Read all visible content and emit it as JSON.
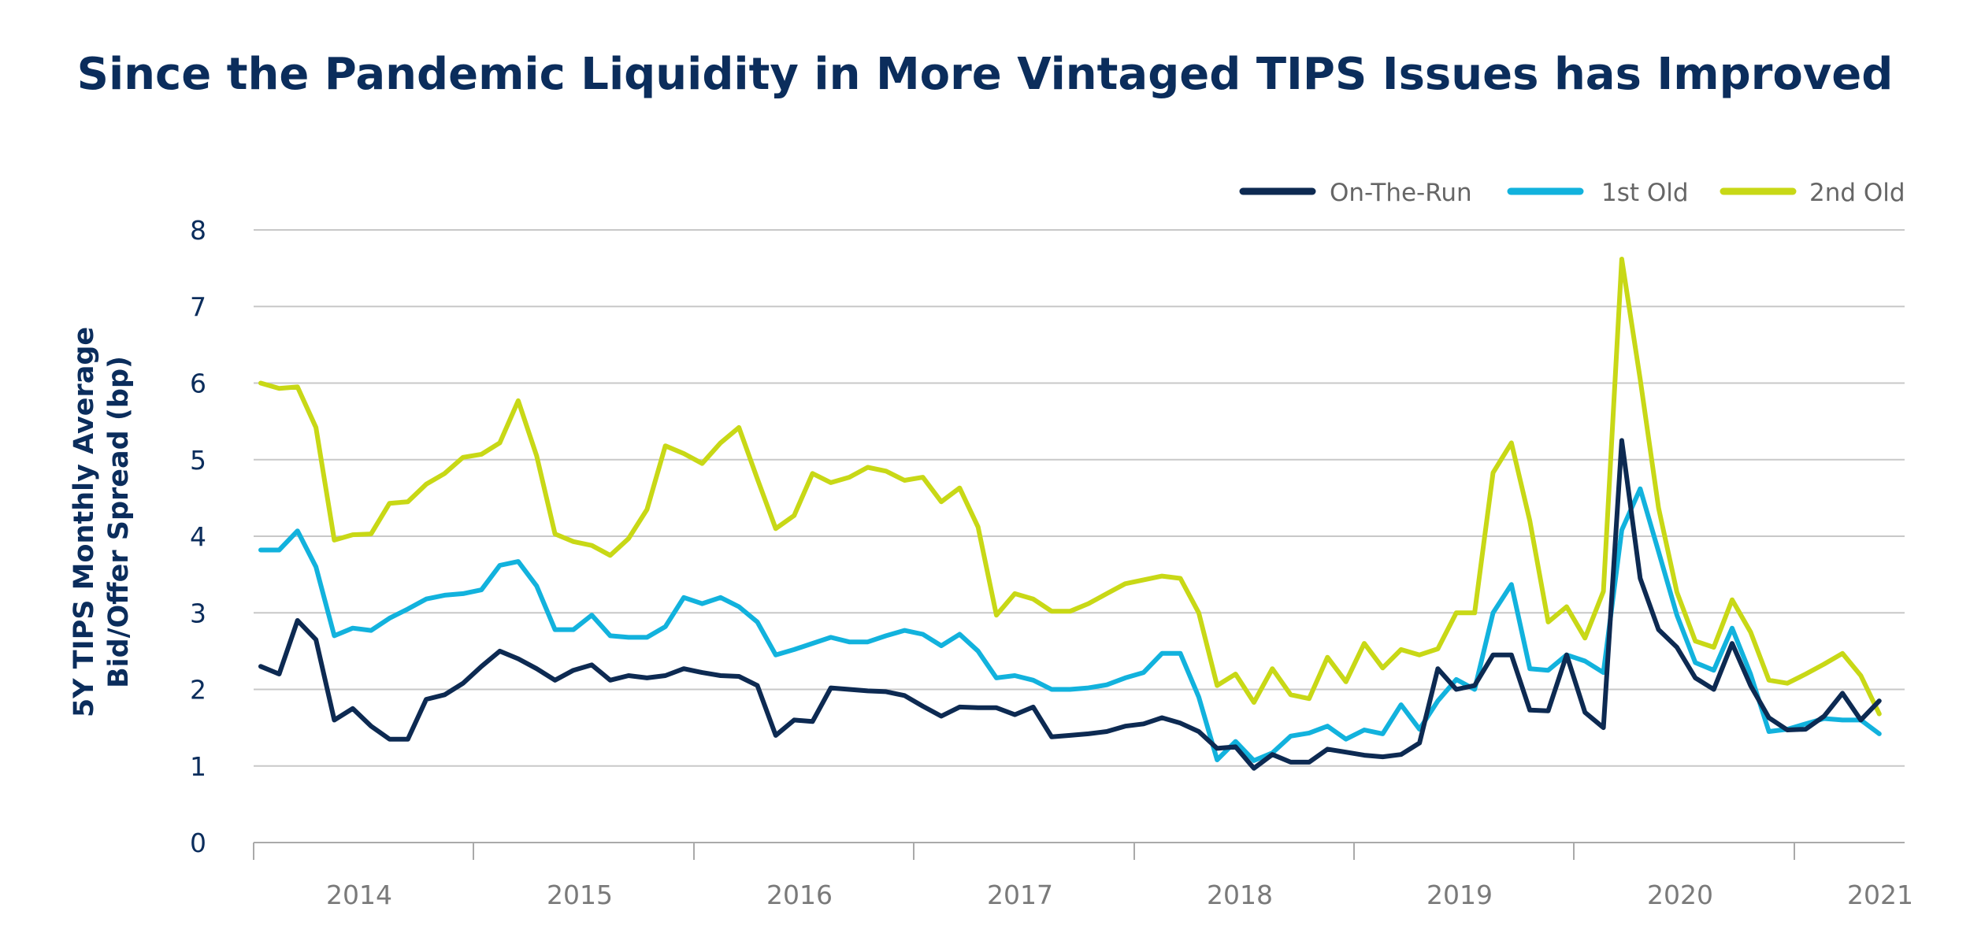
{
  "title": "Since the Pandemic Liquidity in More Vintaged TIPS Issues has Improved",
  "colors": {
    "title": "#0b2d5c",
    "on_the_run": "#0d2a52",
    "first_old": "#12b2dd",
    "second_old": "#c8d816",
    "grid": "#c8c8c8",
    "axis": "#aaaaaa"
  },
  "chart_data": {
    "type": "line",
    "title": "Since the Pandemic Liquidity in More Vintaged TIPS Issues has Improved",
    "ylabel_lines": [
      "5Y TIPS Monthly Average",
      "Bid/Offer Spread (bp)"
    ],
    "xlabel": "",
    "ylim": [
      0,
      8
    ],
    "yticks": [
      "0",
      "1",
      "2",
      "3",
      "4",
      "5",
      "6",
      "7",
      "8"
    ],
    "xticks": [
      "2014",
      "2015",
      "2016",
      "2017",
      "2018",
      "2019",
      "2020",
      "2021"
    ],
    "x_start": "2013-07",
    "frequency": "monthly",
    "grid": true,
    "legend_position": "top-right",
    "series": [
      {
        "name": "On-The-Run",
        "color": "#0d2a52",
        "values": [
          2.3,
          2.2,
          2.9,
          2.65,
          1.6,
          1.75,
          1.52,
          1.35,
          1.35,
          1.87,
          1.93,
          2.08,
          2.3,
          2.5,
          2.4,
          2.27,
          2.12,
          2.25,
          2.32,
          2.12,
          2.18,
          2.15,
          2.18,
          2.27,
          2.22,
          2.18,
          2.17,
          2.05,
          1.4,
          1.6,
          1.58,
          2.02,
          2.0,
          1.98,
          1.97,
          1.92,
          1.78,
          1.65,
          1.77,
          1.76,
          1.76,
          1.67,
          1.77,
          1.38,
          1.4,
          1.42,
          1.45,
          1.52,
          1.55,
          1.63,
          1.56,
          1.45,
          1.23,
          1.25,
          0.97,
          1.15,
          1.05,
          1.05,
          1.22,
          1.18,
          1.14,
          1.12,
          1.15,
          1.3,
          2.27,
          2.0,
          2.05,
          2.45,
          2.45,
          1.73,
          1.72,
          2.45,
          1.7,
          1.5,
          5.25,
          3.45,
          2.78,
          2.55,
          2.15,
          2.0,
          2.6,
          2.05,
          1.63,
          1.47,
          1.48,
          1.65,
          1.95,
          1.6,
          1.85
        ]
      },
      {
        "name": "1st Old",
        "color": "#12b2dd",
        "values": [
          3.82,
          3.82,
          4.07,
          3.6,
          2.7,
          2.8,
          2.77,
          2.93,
          3.05,
          3.18,
          3.23,
          3.25,
          3.3,
          3.62,
          3.67,
          3.35,
          2.78,
          2.78,
          2.97,
          2.7,
          2.68,
          2.68,
          2.82,
          3.2,
          3.12,
          3.2,
          3.08,
          2.88,
          2.45,
          2.52,
          2.6,
          2.68,
          2.62,
          2.62,
          2.7,
          2.77,
          2.72,
          2.57,
          2.72,
          2.5,
          2.15,
          2.18,
          2.12,
          2.0,
          2.0,
          2.02,
          2.06,
          2.15,
          2.22,
          2.47,
          2.47,
          1.9,
          1.08,
          1.32,
          1.07,
          1.17,
          1.39,
          1.43,
          1.52,
          1.35,
          1.47,
          1.42,
          1.8,
          1.48,
          1.85,
          2.13,
          2.0,
          3.0,
          3.37,
          2.27,
          2.25,
          2.45,
          2.37,
          2.22,
          4.08,
          4.62,
          3.8,
          2.97,
          2.35,
          2.25,
          2.8,
          2.2,
          1.45,
          1.48,
          1.55,
          1.62,
          1.6,
          1.6,
          1.42
        ]
      },
      {
        "name": "2nd Old",
        "color": "#c8d816",
        "values": [
          6.0,
          5.93,
          5.95,
          5.42,
          3.95,
          4.02,
          4.03,
          4.43,
          4.45,
          4.68,
          4.82,
          5.03,
          5.07,
          5.22,
          5.77,
          5.05,
          4.03,
          3.93,
          3.88,
          3.75,
          3.97,
          4.35,
          5.18,
          5.08,
          4.95,
          5.22,
          5.42,
          4.75,
          4.1,
          4.27,
          4.82,
          4.7,
          4.77,
          4.9,
          4.85,
          4.73,
          4.77,
          4.45,
          4.63,
          4.12,
          2.97,
          3.25,
          3.18,
          3.02,
          3.02,
          3.12,
          3.25,
          3.38,
          3.43,
          3.48,
          3.45,
          3.0,
          2.05,
          2.2,
          1.83,
          2.27,
          1.93,
          1.88,
          2.42,
          2.1,
          2.6,
          2.28,
          2.52,
          2.45,
          2.53,
          3.0,
          3.0,
          4.83,
          5.22,
          4.2,
          2.88,
          3.08,
          2.67,
          3.28,
          7.62,
          6.05,
          4.37,
          3.27,
          2.63,
          2.55,
          3.17,
          2.75,
          2.12,
          2.08,
          2.2,
          2.33,
          2.47,
          2.18,
          1.68
        ]
      }
    ]
  }
}
